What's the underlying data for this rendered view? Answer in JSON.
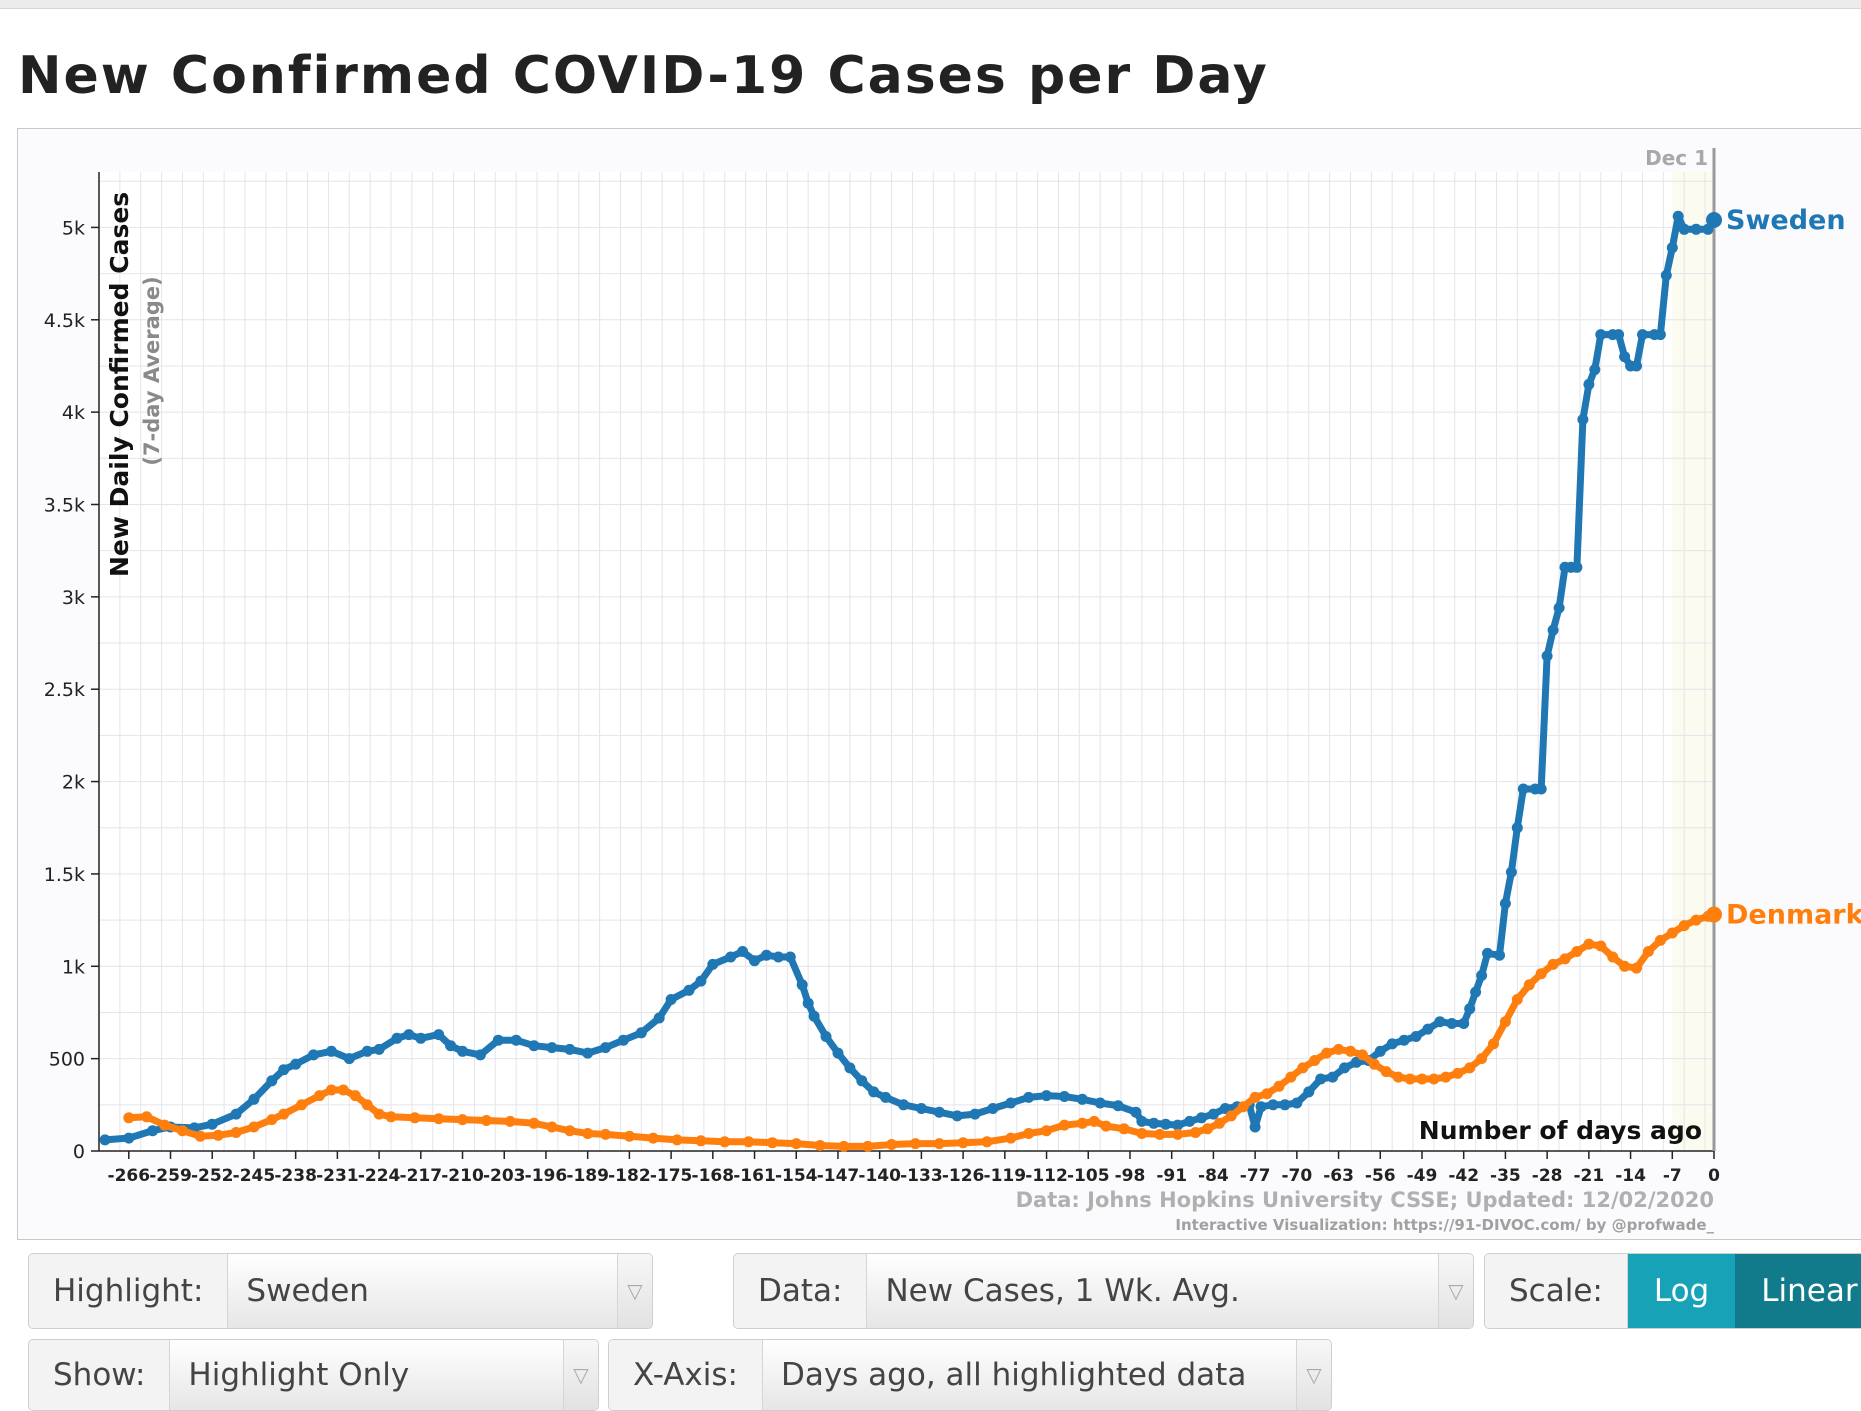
{
  "page_title": "New Confirmed COVID-19 Cases per Day",
  "chart_data": {
    "type": "line",
    "y_label": "New Daily Confirmed Cases",
    "y_sublabel": "(7-day Average)",
    "x_label": "Number of days ago",
    "date_marker": "Dec 1",
    "x_range": [
      -271,
      0
    ],
    "y_range": [
      0,
      5300
    ],
    "x_ticks": [
      -266,
      -259,
      -252,
      -245,
      -238,
      -231,
      -224,
      -217,
      -210,
      -203,
      -196,
      -189,
      -182,
      -175,
      -168,
      -161,
      -154,
      -147,
      -140,
      -133,
      -126,
      -119,
      -112,
      -105,
      -98,
      -91,
      -84,
      -77,
      -70,
      -63,
      -56,
      -49,
      -42,
      -35,
      -28,
      -21,
      -14,
      -7,
      0
    ],
    "x_tick_labels": [
      "-266",
      "-259",
      "-252",
      "-245",
      "-238",
      "-231",
      "-224",
      "-217",
      "-210",
      "-203",
      "-196",
      "-189",
      "-182",
      "-175",
      "-168",
      "-161",
      "-154",
      "-147",
      "-140",
      "-133",
      "-126",
      "-119",
      "-112",
      "-105",
      "-98",
      "-91",
      "-84",
      "-77",
      "-70",
      "-63",
      "-56",
      "-49",
      "-42",
      "-35",
      "-28",
      "-21",
      "-14",
      "-7",
      "0"
    ],
    "y_ticks": [
      0,
      500,
      1000,
      1500,
      2000,
      2500,
      3000,
      3500,
      4000,
      4500,
      5000
    ],
    "y_tick_labels": [
      "0",
      "500",
      "1k",
      "1.5k",
      "2k",
      "2.5k",
      "3k",
      "3.5k",
      "4k",
      "4.5k",
      "5k"
    ],
    "series": [
      {
        "name": "Sweden",
        "color": "#1f77b4",
        "points": [
          [
            -270,
            60
          ],
          [
            -266,
            70
          ],
          [
            -262,
            110
          ],
          [
            -259,
            130
          ],
          [
            -255,
            125
          ],
          [
            -252,
            145
          ],
          [
            -248,
            200
          ],
          [
            -245,
            280
          ],
          [
            -242,
            380
          ],
          [
            -240,
            440
          ],
          [
            -238,
            470
          ],
          [
            -235,
            520
          ],
          [
            -232,
            540
          ],
          [
            -229,
            500
          ],
          [
            -226,
            540
          ],
          [
            -224,
            550
          ],
          [
            -221,
            610
          ],
          [
            -219,
            630
          ],
          [
            -217,
            610
          ],
          [
            -214,
            630
          ],
          [
            -212,
            570
          ],
          [
            -210,
            540
          ],
          [
            -207,
            520
          ],
          [
            -204,
            600
          ],
          [
            -201,
            600
          ],
          [
            -198,
            570
          ],
          [
            -195,
            560
          ],
          [
            -192,
            550
          ],
          [
            -189,
            530
          ],
          [
            -186,
            560
          ],
          [
            -183,
            600
          ],
          [
            -180,
            640
          ],
          [
            -177,
            720
          ],
          [
            -175,
            820
          ],
          [
            -172,
            870
          ],
          [
            -170,
            920
          ],
          [
            -168,
            1010
          ],
          [
            -165,
            1050
          ],
          [
            -163,
            1080
          ],
          [
            -161,
            1030
          ],
          [
            -159,
            1060
          ],
          [
            -157,
            1050
          ],
          [
            -155,
            1050
          ],
          [
            -153,
            900
          ],
          [
            -152,
            800
          ],
          [
            -151,
            730
          ],
          [
            -149,
            620
          ],
          [
            -147,
            530
          ],
          [
            -145,
            450
          ],
          [
            -143,
            380
          ],
          [
            -141,
            320
          ],
          [
            -139,
            290
          ],
          [
            -136,
            250
          ],
          [
            -133,
            230
          ],
          [
            -130,
            210
          ],
          [
            -127,
            190
          ],
          [
            -124,
            200
          ],
          [
            -121,
            230
          ],
          [
            -118,
            260
          ],
          [
            -115,
            290
          ],
          [
            -112,
            300
          ],
          [
            -109,
            295
          ],
          [
            -106,
            280
          ],
          [
            -103,
            260
          ],
          [
            -100,
            245
          ],
          [
            -97,
            210
          ],
          [
            -96,
            160
          ],
          [
            -94,
            150
          ],
          [
            -92,
            145
          ],
          [
            -90,
            140
          ],
          [
            -88,
            160
          ],
          [
            -86,
            180
          ],
          [
            -84,
            200
          ],
          [
            -82,
            230
          ],
          [
            -80,
            240
          ],
          [
            -78,
            250
          ],
          [
            -77,
            130
          ],
          [
            -76,
            240
          ],
          [
            -74,
            250
          ],
          [
            -72,
            250
          ],
          [
            -70,
            260
          ],
          [
            -68,
            320
          ],
          [
            -66,
            390
          ],
          [
            -64,
            400
          ],
          [
            -62,
            450
          ],
          [
            -60,
            480
          ],
          [
            -58,
            490
          ],
          [
            -56,
            540
          ],
          [
            -54,
            580
          ],
          [
            -52,
            600
          ],
          [
            -50,
            620
          ],
          [
            -48,
            660
          ],
          [
            -46,
            700
          ],
          [
            -44,
            690
          ],
          [
            -42,
            690
          ],
          [
            -41,
            770
          ],
          [
            -40,
            860
          ],
          [
            -39,
            950
          ],
          [
            -38,
            1070
          ],
          [
            -36,
            1060
          ],
          [
            -35,
            1340
          ],
          [
            -34,
            1510
          ],
          [
            -33,
            1750
          ],
          [
            -32,
            1960
          ],
          [
            -30,
            1960
          ],
          [
            -29,
            1960
          ],
          [
            -28,
            2680
          ],
          [
            -27,
            2820
          ],
          [
            -26,
            2940
          ],
          [
            -25,
            3160
          ],
          [
            -24,
            3160
          ],
          [
            -23,
            3160
          ],
          [
            -22,
            3960
          ],
          [
            -21,
            4150
          ],
          [
            -20,
            4230
          ],
          [
            -19,
            4420
          ],
          [
            -17,
            4420
          ],
          [
            -16,
            4420
          ],
          [
            -15,
            4300
          ],
          [
            -14,
            4250
          ],
          [
            -13,
            4250
          ],
          [
            -12,
            4420
          ],
          [
            -10,
            4420
          ],
          [
            -9,
            4420
          ],
          [
            -8,
            4740
          ],
          [
            -7,
            4890
          ],
          [
            -6,
            5060
          ],
          [
            -5,
            4990
          ],
          [
            -3,
            4990
          ],
          [
            -1,
            4990
          ],
          [
            0,
            5040
          ]
        ]
      },
      {
        "name": "Denmark",
        "color": "#ff7f0e",
        "points": [
          [
            -266,
            180
          ],
          [
            -263,
            185
          ],
          [
            -260,
            140
          ],
          [
            -257,
            110
          ],
          [
            -254,
            80
          ],
          [
            -251,
            85
          ],
          [
            -248,
            100
          ],
          [
            -245,
            130
          ],
          [
            -242,
            170
          ],
          [
            -240,
            200
          ],
          [
            -237,
            250
          ],
          [
            -234,
            300
          ],
          [
            -232,
            330
          ],
          [
            -230,
            330
          ],
          [
            -228,
            300
          ],
          [
            -226,
            250
          ],
          [
            -224,
            200
          ],
          [
            -222,
            185
          ],
          [
            -218,
            180
          ],
          [
            -214,
            175
          ],
          [
            -210,
            170
          ],
          [
            -206,
            165
          ],
          [
            -202,
            160
          ],
          [
            -198,
            150
          ],
          [
            -195,
            130
          ],
          [
            -192,
            110
          ],
          [
            -189,
            95
          ],
          [
            -186,
            90
          ],
          [
            -182,
            80
          ],
          [
            -178,
            70
          ],
          [
            -174,
            60
          ],
          [
            -170,
            55
          ],
          [
            -166,
            50
          ],
          [
            -162,
            50
          ],
          [
            -158,
            45
          ],
          [
            -154,
            40
          ],
          [
            -150,
            30
          ],
          [
            -146,
            25
          ],
          [
            -142,
            25
          ],
          [
            -138,
            35
          ],
          [
            -134,
            40
          ],
          [
            -130,
            40
          ],
          [
            -126,
            45
          ],
          [
            -122,
            50
          ],
          [
            -118,
            70
          ],
          [
            -115,
            95
          ],
          [
            -112,
            110
          ],
          [
            -109,
            140
          ],
          [
            -106,
            150
          ],
          [
            -104,
            160
          ],
          [
            -102,
            135
          ],
          [
            -99,
            120
          ],
          [
            -96,
            95
          ],
          [
            -93,
            90
          ],
          [
            -90,
            90
          ],
          [
            -87,
            100
          ],
          [
            -85,
            120
          ],
          [
            -83,
            150
          ],
          [
            -81,
            190
          ],
          [
            -79,
            240
          ],
          [
            -77,
            290
          ],
          [
            -75,
            310
          ],
          [
            -73,
            350
          ],
          [
            -71,
            400
          ],
          [
            -69,
            450
          ],
          [
            -67,
            490
          ],
          [
            -65,
            530
          ],
          [
            -63,
            550
          ],
          [
            -61,
            540
          ],
          [
            -59,
            520
          ],
          [
            -57,
            470
          ],
          [
            -55,
            430
          ],
          [
            -53,
            400
          ],
          [
            -51,
            390
          ],
          [
            -49,
            390
          ],
          [
            -47,
            390
          ],
          [
            -45,
            400
          ],
          [
            -43,
            420
          ],
          [
            -41,
            450
          ],
          [
            -39,
            500
          ],
          [
            -37,
            580
          ],
          [
            -35,
            700
          ],
          [
            -33,
            820
          ],
          [
            -31,
            900
          ],
          [
            -29,
            960
          ],
          [
            -27,
            1010
          ],
          [
            -25,
            1040
          ],
          [
            -23,
            1080
          ],
          [
            -21,
            1120
          ],
          [
            -19,
            1110
          ],
          [
            -17,
            1050
          ],
          [
            -15,
            1000
          ],
          [
            -13,
            990
          ],
          [
            -11,
            1080
          ],
          [
            -9,
            1140
          ],
          [
            -7,
            1180
          ],
          [
            -5,
            1220
          ],
          [
            -3,
            1250
          ],
          [
            -1,
            1270
          ],
          [
            0,
            1280
          ]
        ]
      }
    ],
    "source_text": "Data: Johns Hopkins University CSSE; Updated: 12/02/2020",
    "credit_text": "Interactive Visualization: https://91-DIVOC.com/ by @profwade_"
  },
  "controls": {
    "highlight": {
      "label": "Highlight:",
      "value": "Sweden"
    },
    "data": {
      "label": "Data:",
      "value": "New Cases, 1 Wk. Avg."
    },
    "scale": {
      "label": "Scale:",
      "options": [
        "Log",
        "Linear"
      ],
      "selected": "Linear"
    },
    "show": {
      "label": "Show:",
      "value": "Highlight Only"
    },
    "xaxis": {
      "label": "X-Axis:",
      "value": "Days ago, all highlighted data"
    }
  }
}
